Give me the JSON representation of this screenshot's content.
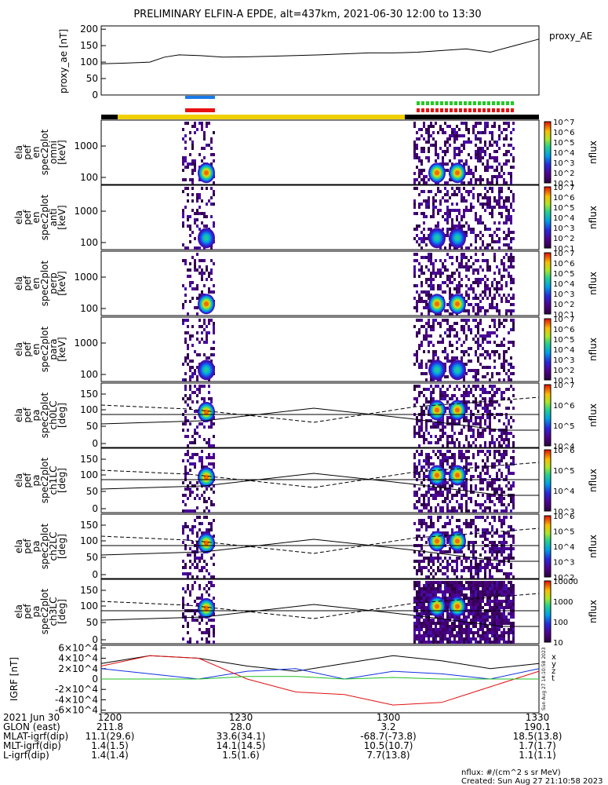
{
  "title": "PRELIMINARY ELFIN-A EPDE, alt=437km, 2021-06-30 12:00 to 13:30",
  "colors": {
    "orbit_bar_yellow": "#f0d000",
    "bar_blue": "#1a7ae8",
    "bar_red": "#e81010",
    "bar_green": "#22cc22",
    "bx": "#000000",
    "by": "#1030e0",
    "bz": "#e01010",
    "bt": "#20c020"
  },
  "chart_data": [
    {
      "type": "line",
      "panel": "proxy_ae",
      "ylabel": "proxy_ae [nT]",
      "legend": "proxy_AE",
      "yticks": [
        "200",
        "150",
        "100",
        "50",
        "0"
      ],
      "ylim": [
        0,
        210
      ],
      "x_minutes": [
        0,
        5,
        10,
        13,
        16,
        20,
        25,
        30,
        35,
        40,
        45,
        50,
        55,
        60,
        65,
        70,
        75,
        80,
        85,
        90
      ],
      "values": [
        95,
        97,
        100,
        115,
        122,
        120,
        115,
        116,
        118,
        120,
        122,
        125,
        128,
        128,
        130,
        135,
        140,
        130,
        150,
        170
      ]
    },
    {
      "type": "heatmap",
      "panel": "omni",
      "ylabel": [
        "ela",
        "pef",
        "en",
        "spec2plot",
        "omni",
        "[keV]"
      ],
      "yticks": [
        "1000",
        "100"
      ],
      "colorbar": {
        "label": "nflux",
        "ticks": [
          "10^7",
          "10^6",
          "10^5",
          "10^4",
          "10^3",
          "10^2",
          "10^1"
        ]
      }
    },
    {
      "type": "heatmap",
      "panel": "anti",
      "ylabel": [
        "ela",
        "pef",
        "en",
        "spec2plot",
        "anti",
        "[keV]"
      ],
      "yticks": [
        "1000",
        "100"
      ],
      "colorbar": {
        "label": "nflux",
        "ticks": [
          "10^7",
          "10^6",
          "10^5",
          "10^4",
          "10^3",
          "10^2",
          "10^1"
        ]
      }
    },
    {
      "type": "heatmap",
      "panel": "perp",
      "ylabel": [
        "ela",
        "pef",
        "en",
        "spec2plot",
        "perp",
        "[keV]"
      ],
      "yticks": [
        "1000",
        "100"
      ],
      "colorbar": {
        "label": "nflux",
        "ticks": [
          "10^7",
          "10^6",
          "10^5",
          "10^4",
          "10^3",
          "10^2",
          "10^1"
        ]
      }
    },
    {
      "type": "heatmap",
      "panel": "para",
      "ylabel": [
        "ela",
        "pef",
        "en",
        "spec2plot",
        "para",
        "[keV]"
      ],
      "yticks": [
        "1000",
        "100"
      ],
      "colorbar": {
        "label": "nflux",
        "ticks": [
          "10^7",
          "10^6",
          "10^5",
          "10^4",
          "10^3",
          "10^2",
          "10^1"
        ]
      }
    },
    {
      "type": "heatmap",
      "panel": "ch0LC",
      "ylabel": [
        "ela",
        "pef",
        "pa",
        "spec2plot",
        "ch0LC",
        "[deg]"
      ],
      "yticks": [
        "150",
        "100",
        "50",
        "0"
      ],
      "colorbar": {
        "label": "nflux",
        "ticks": [
          "10^7",
          "10^6",
          "10^5",
          "10^4"
        ]
      }
    },
    {
      "type": "heatmap",
      "panel": "ch1LC",
      "ylabel": [
        "ela",
        "pef",
        "pa",
        "spec2plot",
        "ch1LC",
        "[deg]"
      ],
      "yticks": [
        "150",
        "100",
        "50",
        "0"
      ],
      "colorbar": {
        "label": "nflux",
        "ticks": [
          "10^6",
          "10^5",
          "10^4",
          "10^3"
        ]
      }
    },
    {
      "type": "heatmap",
      "panel": "ch2LC",
      "ylabel": [
        "ela",
        "pef",
        "pa",
        "spec2plot",
        "ch2LC",
        "[deg]"
      ],
      "yticks": [
        "150",
        "100",
        "50",
        "0"
      ],
      "colorbar": {
        "label": "nflux",
        "ticks": [
          "10^6",
          "10^5",
          "10^4",
          "10^3",
          "10^2"
        ]
      }
    },
    {
      "type": "heatmap",
      "panel": "ch3LC",
      "ylabel": [
        "ela",
        "pef",
        "pa",
        "spec2plot",
        "ch3LC",
        "[deg]"
      ],
      "yticks": [
        "150",
        "100",
        "50",
        "0"
      ],
      "colorbar": {
        "label": "nflux",
        "ticks": [
          "10000",
          "1000",
          "100",
          "10"
        ]
      }
    },
    {
      "type": "line",
      "panel": "IGRF",
      "ylabel": "IGRF [nT]",
      "yticks": [
        "6×10^4",
        "4×10^4",
        "2×10^4",
        "0",
        "-2×10^4",
        "-4×10^4",
        "-6×10^4"
      ],
      "ylim": [
        -60000,
        60000
      ],
      "legend": [
        "x",
        "y",
        "z",
        "t"
      ],
      "series": [
        {
          "name": "x",
          "x_minutes": [
            0,
            10,
            20,
            30,
            40,
            50,
            60,
            70,
            80,
            90
          ],
          "values": [
            30000,
            45000,
            40000,
            25000,
            15000,
            30000,
            45000,
            35000,
            20000,
            30000
          ]
        },
        {
          "name": "y",
          "x_minutes": [
            0,
            10,
            20,
            30,
            40,
            50,
            60,
            70,
            80,
            90
          ],
          "values": [
            20000,
            10000,
            0,
            15000,
            20000,
            0,
            15000,
            10000,
            0,
            20000
          ]
        },
        {
          "name": "z",
          "x_minutes": [
            0,
            10,
            20,
            30,
            40,
            50,
            60,
            70,
            80,
            90
          ],
          "values": [
            25000,
            45000,
            40000,
            0,
            -25000,
            -30000,
            -50000,
            -45000,
            -15000,
            15000
          ]
        },
        {
          "name": "t",
          "x_minutes": [
            0,
            10,
            20,
            30,
            40,
            50,
            60,
            70,
            80,
            90
          ],
          "values": [
            0,
            0,
            0,
            5000,
            5000,
            0,
            3000,
            0,
            0,
            0
          ]
        }
      ]
    }
  ],
  "xaxis": {
    "rows": [
      {
        "label": "2021 Jun 30",
        "values": [
          "1200",
          "1230",
          "1300",
          "1330"
        ]
      },
      {
        "label": "GLON (east)",
        "values": [
          "211.8",
          "28.0",
          "3.2",
          "190.1"
        ]
      },
      {
        "label": "MLAT-igrf(dip)",
        "values": [
          "11.1(29.6)",
          "33.6(34.1)",
          "-68.7(-73.8)",
          "18.5(13.8)"
        ]
      },
      {
        "label": "MLT-igrf(dip)",
        "values": [
          "1.4(1.5)",
          "14.1(14.5)",
          "10.5(10.7)",
          "1.7(1.7)"
        ]
      },
      {
        "label": "L-igrf(dip)",
        "values": [
          "1.4(1.4)",
          "1.5(1.6)",
          "7.7(13.8)",
          "1.1(1.1)"
        ]
      }
    ]
  },
  "footer": {
    "units": "nflux: #/(cm^2 s sr MeV)",
    "created": "Created: Sun Aug 27 21:10:58 2023",
    "side_stamp": "Sun Aug 27 14:10:58 2023"
  }
}
